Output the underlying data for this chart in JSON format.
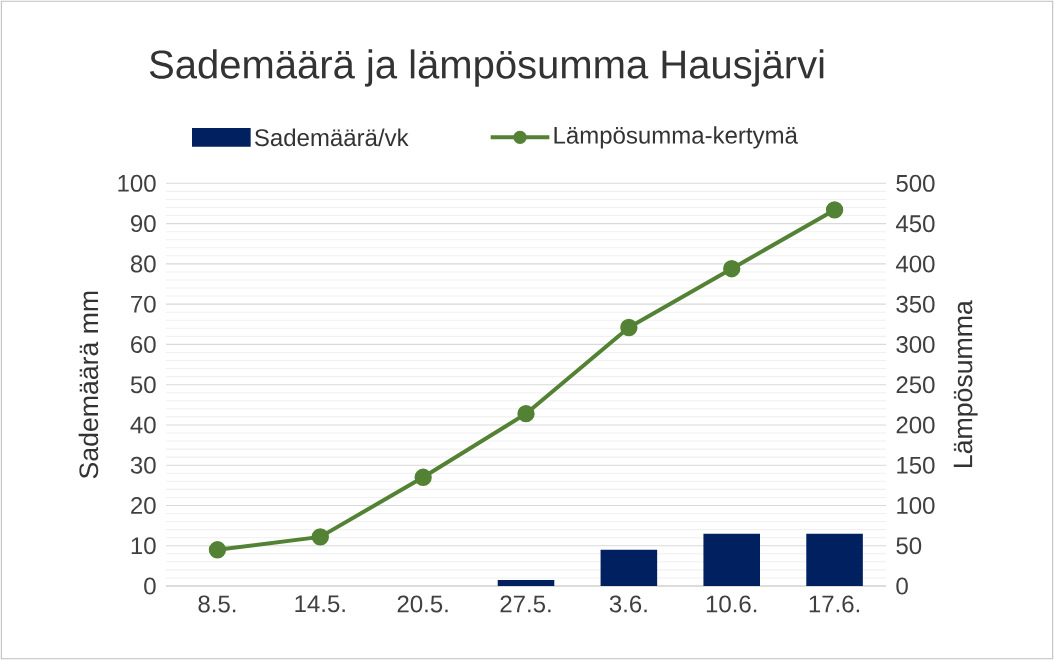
{
  "chart_data": {
    "type": "bar",
    "title": "Sademäärä ja lämpösumma Hausjärvi",
    "categories": [
      "8.5.",
      "14.5.",
      "20.5.",
      "27.5.",
      "3.6.",
      "10.6.",
      "17.6."
    ],
    "series": [
      {
        "name": "Sademäärä/vk",
        "color": "#002060",
        "values": [
          0,
          0,
          0,
          1.5,
          9,
          13,
          13
        ]
      },
      {
        "name": "Lämpösumma-kertymä",
        "type": "line",
        "axis": "y2",
        "color": "#548235",
        "marker": "circle",
        "values": [
          45,
          61,
          135,
          214,
          321,
          394,
          467
        ]
      }
    ],
    "ylabel": "Sademäärä mm",
    "y2label": "Lämpösumma",
    "ylim": [
      0,
      100
    ],
    "yticks": [
      0,
      10,
      20,
      30,
      40,
      50,
      60,
      70,
      80,
      90,
      100
    ],
    "y2lim": [
      0,
      500
    ],
    "y2ticks": [
      0,
      50,
      100,
      150,
      200,
      250,
      300,
      350,
      400,
      450,
      500
    ],
    "grid": true,
    "legend": "top"
  }
}
